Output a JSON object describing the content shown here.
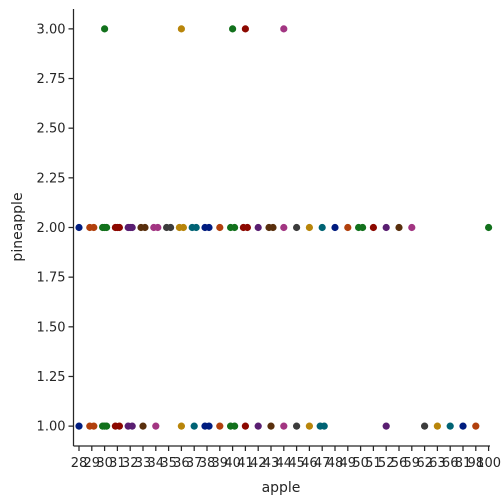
{
  "chart_data": {
    "type": "scatter",
    "title": "",
    "xlabel": "apple",
    "ylabel": "pineapple",
    "x_axis": "categorical",
    "categories": [
      "28",
      "29",
      "30",
      "31",
      "32",
      "33",
      "34",
      "35",
      "36",
      "37",
      "38",
      "39",
      "40",
      "41",
      "42",
      "43",
      "44",
      "45",
      "46",
      "47",
      "48",
      "49",
      "50",
      "51",
      "52",
      "56",
      "59",
      "62",
      "63",
      "66",
      "81",
      "98",
      "100"
    ],
    "yticks": [
      "1.00",
      "1.25",
      "1.50",
      "1.75",
      "2.00",
      "2.25",
      "2.50",
      "2.75",
      "3.00"
    ],
    "ylim": [
      0.9,
      3.1
    ],
    "grid": false,
    "legend": "none",
    "palette": [
      "#001c7f",
      "#b1400d",
      "#12711c",
      "#8c0800",
      "#591e71",
      "#592f0d",
      "#a23582",
      "#3c3c3c",
      "#b8850a",
      "#006374"
    ],
    "points": [
      {
        "x": "28",
        "y": 2,
        "c": 0
      },
      {
        "x": "28",
        "y": 1,
        "c": 0
      },
      {
        "x": "29",
        "y": 2,
        "c": 1
      },
      {
        "x": "29",
        "y": 2,
        "c": 1
      },
      {
        "x": "29",
        "y": 1,
        "c": 1
      },
      {
        "x": "29",
        "y": 1,
        "c": 1
      },
      {
        "x": "30",
        "y": 3,
        "c": 2
      },
      {
        "x": "30",
        "y": 2,
        "c": 2
      },
      {
        "x": "30",
        "y": 2,
        "c": 2
      },
      {
        "x": "30",
        "y": 2,
        "c": 2
      },
      {
        "x": "30",
        "y": 1,
        "c": 2
      },
      {
        "x": "30",
        "y": 1,
        "c": 2
      },
      {
        "x": "30",
        "y": 1,
        "c": 2
      },
      {
        "x": "31",
        "y": 2,
        "c": 3
      },
      {
        "x": "31",
        "y": 2,
        "c": 3
      },
      {
        "x": "31",
        "y": 2,
        "c": 3
      },
      {
        "x": "31",
        "y": 1,
        "c": 3
      },
      {
        "x": "31",
        "y": 1,
        "c": 3
      },
      {
        "x": "32",
        "y": 2,
        "c": 4
      },
      {
        "x": "32",
        "y": 2,
        "c": 4
      },
      {
        "x": "32",
        "y": 2,
        "c": 4
      },
      {
        "x": "32",
        "y": 1,
        "c": 4
      },
      {
        "x": "32",
        "y": 1,
        "c": 4
      },
      {
        "x": "33",
        "y": 2,
        "c": 5
      },
      {
        "x": "33",
        "y": 2,
        "c": 5
      },
      {
        "x": "33",
        "y": 1,
        "c": 5
      },
      {
        "x": "34",
        "y": 2,
        "c": 6
      },
      {
        "x": "34",
        "y": 2,
        "c": 6
      },
      {
        "x": "34",
        "y": 1,
        "c": 6
      },
      {
        "x": "35",
        "y": 2,
        "c": 7
      },
      {
        "x": "35",
        "y": 2,
        "c": 7
      },
      {
        "x": "36",
        "y": 3,
        "c": 8
      },
      {
        "x": "36",
        "y": 2,
        "c": 8
      },
      {
        "x": "36",
        "y": 2,
        "c": 8
      },
      {
        "x": "36",
        "y": 1,
        "c": 8
      },
      {
        "x": "37",
        "y": 2,
        "c": 9
      },
      {
        "x": "37",
        "y": 2,
        "c": 9
      },
      {
        "x": "37",
        "y": 1,
        "c": 9
      },
      {
        "x": "38",
        "y": 2,
        "c": 0
      },
      {
        "x": "38",
        "y": 2,
        "c": 0
      },
      {
        "x": "38",
        "y": 1,
        "c": 0
      },
      {
        "x": "38",
        "y": 1,
        "c": 0
      },
      {
        "x": "39",
        "y": 2,
        "c": 1
      },
      {
        "x": "39",
        "y": 1,
        "c": 1
      },
      {
        "x": "40",
        "y": 3,
        "c": 2
      },
      {
        "x": "40",
        "y": 2,
        "c": 2
      },
      {
        "x": "40",
        "y": 2,
        "c": 2
      },
      {
        "x": "40",
        "y": 1,
        "c": 2
      },
      {
        "x": "40",
        "y": 1,
        "c": 2
      },
      {
        "x": "41",
        "y": 3,
        "c": 3
      },
      {
        "x": "41",
        "y": 2,
        "c": 3
      },
      {
        "x": "41",
        "y": 2,
        "c": 3
      },
      {
        "x": "41",
        "y": 1,
        "c": 3
      },
      {
        "x": "42",
        "y": 2,
        "c": 4
      },
      {
        "x": "42",
        "y": 1,
        "c": 4
      },
      {
        "x": "43",
        "y": 2,
        "c": 5
      },
      {
        "x": "43",
        "y": 2,
        "c": 5
      },
      {
        "x": "43",
        "y": 1,
        "c": 5
      },
      {
        "x": "44",
        "y": 3,
        "c": 6
      },
      {
        "x": "44",
        "y": 2,
        "c": 6
      },
      {
        "x": "44",
        "y": 1,
        "c": 6
      },
      {
        "x": "45",
        "y": 2,
        "c": 7
      },
      {
        "x": "45",
        "y": 1,
        "c": 7
      },
      {
        "x": "46",
        "y": 2,
        "c": 8
      },
      {
        "x": "46",
        "y": 1,
        "c": 8
      },
      {
        "x": "47",
        "y": 2,
        "c": 9
      },
      {
        "x": "47",
        "y": 1,
        "c": 9
      },
      {
        "x": "47",
        "y": 1,
        "c": 9
      },
      {
        "x": "48",
        "y": 2,
        "c": 0
      },
      {
        "x": "49",
        "y": 2,
        "c": 1
      },
      {
        "x": "50",
        "y": 2,
        "c": 2
      },
      {
        "x": "50",
        "y": 2,
        "c": 2
      },
      {
        "x": "51",
        "y": 2,
        "c": 3
      },
      {
        "x": "52",
        "y": 2,
        "c": 4
      },
      {
        "x": "52",
        "y": 1,
        "c": 4
      },
      {
        "x": "56",
        "y": 2,
        "c": 5
      },
      {
        "x": "59",
        "y": 2,
        "c": 6
      },
      {
        "x": "62",
        "y": 1,
        "c": 7
      },
      {
        "x": "63",
        "y": 1,
        "c": 8
      },
      {
        "x": "66",
        "y": 1,
        "c": 9
      },
      {
        "x": "81",
        "y": 1,
        "c": 0
      },
      {
        "x": "98",
        "y": 1,
        "c": 1
      },
      {
        "x": "100",
        "y": 2,
        "c": 2
      }
    ]
  }
}
